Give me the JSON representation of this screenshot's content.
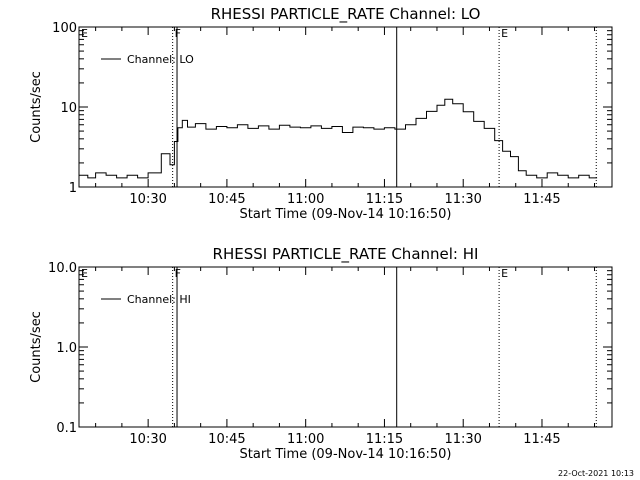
{
  "chart_data": [
    {
      "type": "line",
      "title": "RHESSI PARTICLE_RATE Channel: LO",
      "xlabel": "Start Time (09-Nov-14 10:16:50)",
      "ylabel": "Counts/sec",
      "y_scale": "log",
      "ylim": [
        1,
        100
      ],
      "ytick_labels": [
        "1",
        "10",
        "100"
      ],
      "yticks": [
        1,
        10,
        100
      ],
      "xlim": [
        "10:16:50",
        "11:58:20"
      ],
      "xtick_labels": [
        "10:30",
        "10:45",
        "11:00",
        "11:15",
        "11:30",
        "11:45"
      ],
      "xticks": [
        "10:30",
        "10:45",
        "11:00",
        "11:15",
        "11:30",
        "11:45"
      ],
      "legend": {
        "label": "Channel: LO",
        "placement": "top-left"
      },
      "markers": [
        {
          "label": "E",
          "time": "10:16:50",
          "style": "dotted"
        },
        {
          "label": "F",
          "time": "10:34:40",
          "style": "dotted"
        },
        {
          "label": "",
          "time": "10:35:30",
          "style": "solid"
        },
        {
          "label": "",
          "time": "11:17:20",
          "style": "solid"
        },
        {
          "label": "E",
          "time": "11:36:50",
          "style": "dotted"
        },
        {
          "label": "",
          "time": "11:55:20",
          "style": "dotted"
        }
      ],
      "series": [
        {
          "name": "Channel: LO",
          "x": [
            "10:16:50",
            "10:18:30",
            "10:20:00",
            "10:22:00",
            "10:24:00",
            "10:26:00",
            "10:28:00",
            "10:30:00",
            "10:31:30",
            "10:32:30",
            "10:33:30",
            "10:34:10",
            "10:35:00",
            "10:35:40",
            "10:36:30",
            "10:37:30",
            "10:39:00",
            "10:41:00",
            "10:43:00",
            "10:45:00",
            "10:47:00",
            "10:49:00",
            "10:51:00",
            "10:53:00",
            "10:55:00",
            "10:57:00",
            "10:59:00",
            "11:01:00",
            "11:03:00",
            "11:05:00",
            "11:07:00",
            "11:09:00",
            "11:11:00",
            "11:13:00",
            "11:15:00",
            "11:17:00",
            "11:19:00",
            "11:21:00",
            "11:23:00",
            "11:25:00",
            "11:26:30",
            "11:28:00",
            "11:30:00",
            "11:32:00",
            "11:34:00",
            "11:36:00",
            "11:37:30",
            "11:39:00",
            "11:40:30",
            "11:42:00",
            "11:44:00",
            "11:46:00",
            "11:48:00",
            "11:50:00",
            "11:52:00",
            "11:54:00",
            "11:55:30"
          ],
          "values": [
            1.4,
            1.3,
            1.5,
            1.4,
            1.3,
            1.4,
            1.3,
            1.5,
            1.5,
            2.6,
            2.6,
            1.9,
            3.7,
            5.5,
            6.8,
            5.6,
            6.2,
            5.3,
            5.7,
            5.5,
            6.0,
            5.4,
            5.8,
            5.3,
            5.9,
            5.6,
            5.5,
            5.8,
            5.4,
            5.7,
            4.8,
            5.6,
            5.5,
            5.3,
            5.5,
            5.3,
            6.0,
            7.2,
            8.8,
            10.5,
            12.5,
            11.0,
            8.7,
            6.6,
            5.4,
            3.8,
            2.8,
            2.4,
            1.6,
            1.4,
            1.3,
            1.5,
            1.4,
            1.3,
            1.4,
            1.3,
            1.3
          ]
        }
      ]
    },
    {
      "type": "line",
      "title": "RHESSI PARTICLE_RATE Channel: HI",
      "xlabel": "Start Time (09-Nov-14 10:16:50)",
      "ylabel": "Counts/sec",
      "y_scale": "log",
      "ylim": [
        0.1,
        10
      ],
      "ytick_labels": [
        "0.1",
        "1.0",
        "10.0"
      ],
      "yticks": [
        0.1,
        1.0,
        10.0
      ],
      "xlim": [
        "10:16:50",
        "11:58:20"
      ],
      "xtick_labels": [
        "10:30",
        "10:45",
        "11:00",
        "11:15",
        "11:30",
        "11:45"
      ],
      "xticks": [
        "10:30",
        "10:45",
        "11:00",
        "11:15",
        "11:30",
        "11:45"
      ],
      "legend": {
        "label": "Channel: HI",
        "placement": "top-left"
      },
      "markers": [
        {
          "label": "E",
          "time": "10:16:50",
          "style": "dotted"
        },
        {
          "label": "F",
          "time": "10:34:40",
          "style": "dotted"
        },
        {
          "label": "",
          "time": "10:35:30",
          "style": "solid"
        },
        {
          "label": "",
          "time": "11:17:20",
          "style": "solid"
        },
        {
          "label": "E",
          "time": "11:36:50",
          "style": "dotted"
        },
        {
          "label": "",
          "time": "11:55:20",
          "style": "dotted"
        }
      ],
      "series": [
        {
          "name": "Channel: HI",
          "x": [],
          "values": []
        }
      ]
    }
  ],
  "footer": {
    "date": "22-Oct-2021 10:13"
  }
}
